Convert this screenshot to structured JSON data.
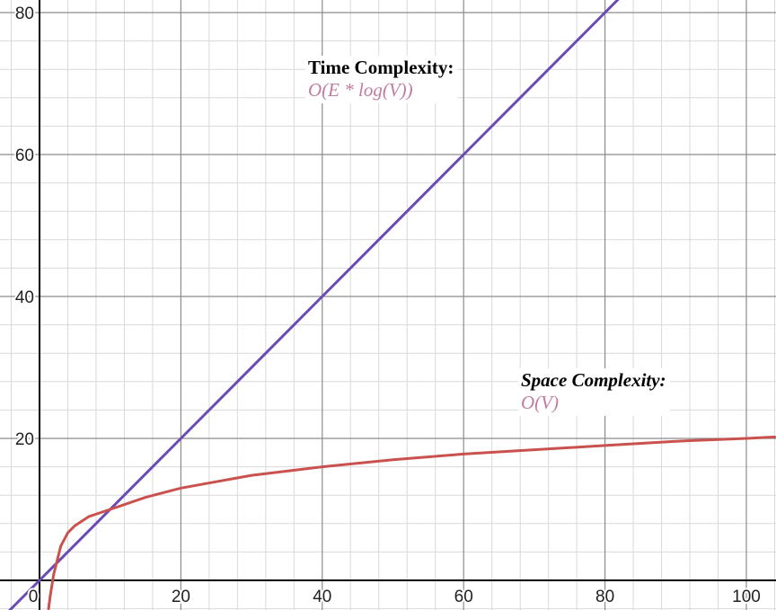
{
  "chart_data": {
    "type": "line",
    "title": "",
    "xlabel": "",
    "ylabel": "",
    "xlim": [
      -5,
      104
    ],
    "ylim": [
      -4,
      82
    ],
    "grid": true,
    "x_ticks": [
      0,
      20,
      40,
      60,
      80,
      100
    ],
    "y_ticks": [
      20,
      40,
      60,
      80
    ],
    "colors": {
      "axis": "#000000",
      "grid_major": "#8c8c8c",
      "grid_minor": "#d9d9d9"
    },
    "series": [
      {
        "color": "#6a4bb5",
        "x": [
          -5,
          0,
          20,
          40,
          60,
          80,
          104
        ],
        "y": [
          -5,
          0,
          20,
          40,
          60,
          80,
          104
        ]
      },
      {
        "color": "#c9524e",
        "x": [
          1.28,
          1.5,
          2,
          3,
          4,
          5,
          7,
          10,
          15,
          20,
          30,
          40,
          50,
          60,
          70,
          80,
          90,
          100,
          104
        ],
        "y": [
          -4,
          -2.3,
          0.8,
          4.8,
          6.7,
          7.7,
          9.0,
          10.0,
          11.7,
          13.0,
          14.8,
          16.0,
          17.0,
          17.8,
          18.4,
          19.0,
          19.6,
          20.0,
          20.2
        ]
      }
    ],
    "annotations": [
      {
        "heading": "Time Complexity:",
        "text": "O(E * log(V))",
        "x": 51,
        "y": 73
      },
      {
        "heading": "Space Complexity:",
        "text": "O(V)",
        "x": 81,
        "y": 26
      }
    ]
  }
}
